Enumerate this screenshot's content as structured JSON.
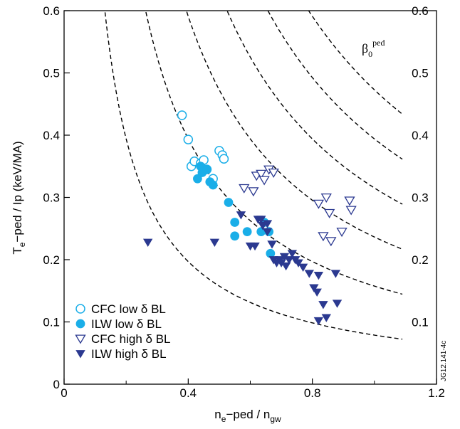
{
  "chart_data": {
    "type": "scatter",
    "title": "",
    "xlabel": "nₑ−ped / nₗw",
    "xlabel_parts": {
      "pre": "n",
      "sub1": "e",
      "mid": "−ped / n",
      "sub2": "gw"
    },
    "ylabel": "Tₑ−ped / Ip (keV/MA)",
    "ylabel_parts": {
      "pre": "T",
      "sub1": "e",
      "mid": "−ped / Ip (keV/MA)"
    },
    "xlim": [
      0,
      1.2
    ],
    "ylim": [
      0,
      0.6
    ],
    "x_ticks": [
      "0",
      "0.4",
      "0.8",
      "1.2"
    ],
    "x_tick_values": [
      0,
      0.4,
      0.8,
      1.2
    ],
    "x_minor_ticks": [
      0.2,
      0.6,
      1.0
    ],
    "y_ticks": [
      "0",
      "0.1",
      "0.2",
      "0.3",
      "0.4",
      "0.5",
      "0.6"
    ],
    "y_tick_values": [
      0,
      0.1,
      0.2,
      0.3,
      0.4,
      0.5,
      0.6
    ],
    "grid": false,
    "legend_position": "bottom-left",
    "beta_label": {
      "base": "β",
      "sub": "0",
      "sup": "ped"
    },
    "figure_code": "JG12.141-4c",
    "curves": [
      {
        "label": "0.1",
        "k": 0.0788,
        "label_value": 0.1
      },
      {
        "label": "0.2",
        "k": 0.1576,
        "label_value": 0.2
      },
      {
        "label": "0.3",
        "k": 0.2364,
        "label_value": 0.3
      },
      {
        "label": "0.4",
        "k": 0.3152,
        "label_value": 0.4
      },
      {
        "label": "0.5",
        "k": 0.394,
        "label_value": 0.5
      },
      {
        "label": "0.6",
        "k": 0.4728,
        "label_value": 0.6
      }
    ],
    "series": [
      {
        "name": "CFC low δ BL",
        "marker": "circle-open",
        "color": "#1aaee8",
        "points": [
          [
            0.38,
            0.432
          ],
          [
            0.4,
            0.393
          ],
          [
            0.41,
            0.35
          ],
          [
            0.42,
            0.358
          ],
          [
            0.44,
            0.355
          ],
          [
            0.45,
            0.36
          ],
          [
            0.46,
            0.345
          ],
          [
            0.5,
            0.375
          ],
          [
            0.51,
            0.368
          ],
          [
            0.515,
            0.362
          ],
          [
            0.48,
            0.33
          ]
        ]
      },
      {
        "name": "ILW low δ BL",
        "marker": "circle-filled",
        "color": "#1aaee8",
        "points": [
          [
            0.43,
            0.33
          ],
          [
            0.44,
            0.35
          ],
          [
            0.445,
            0.34
          ],
          [
            0.46,
            0.345
          ],
          [
            0.47,
            0.325
          ],
          [
            0.48,
            0.32
          ],
          [
            0.53,
            0.292
          ],
          [
            0.55,
            0.26
          ],
          [
            0.55,
            0.238
          ],
          [
            0.59,
            0.245
          ],
          [
            0.635,
            0.245
          ],
          [
            0.645,
            0.26
          ],
          [
            0.66,
            0.245
          ],
          [
            0.665,
            0.21
          ]
        ]
      },
      {
        "name": "CFC high δ BL",
        "marker": "triangle-open",
        "color": "#2b3990",
        "points": [
          [
            0.58,
            0.315
          ],
          [
            0.61,
            0.31
          ],
          [
            0.62,
            0.335
          ],
          [
            0.635,
            0.338
          ],
          [
            0.645,
            0.328
          ],
          [
            0.66,
            0.345
          ],
          [
            0.675,
            0.34
          ],
          [
            0.82,
            0.29
          ],
          [
            0.845,
            0.3
          ],
          [
            0.855,
            0.275
          ],
          [
            0.92,
            0.295
          ],
          [
            0.925,
            0.28
          ],
          [
            0.835,
            0.238
          ],
          [
            0.86,
            0.23
          ],
          [
            0.895,
            0.245
          ]
        ]
      },
      {
        "name": "ILW high δ BL",
        "marker": "triangle-filled",
        "color": "#2b3990",
        "points": [
          [
            0.27,
            0.228
          ],
          [
            0.485,
            0.228
          ],
          [
            0.57,
            0.272
          ],
          [
            0.6,
            0.222
          ],
          [
            0.615,
            0.222
          ],
          [
            0.625,
            0.265
          ],
          [
            0.635,
            0.265
          ],
          [
            0.64,
            0.255
          ],
          [
            0.655,
            0.258
          ],
          [
            0.655,
            0.245
          ],
          [
            0.67,
            0.225
          ],
          [
            0.675,
            0.2
          ],
          [
            0.685,
            0.195
          ],
          [
            0.695,
            0.2
          ],
          [
            0.7,
            0.195
          ],
          [
            0.71,
            0.205
          ],
          [
            0.715,
            0.19
          ],
          [
            0.725,
            0.2
          ],
          [
            0.735,
            0.21
          ],
          [
            0.745,
            0.2
          ],
          [
            0.755,
            0.195
          ],
          [
            0.77,
            0.188
          ],
          [
            0.79,
            0.178
          ],
          [
            0.805,
            0.155
          ],
          [
            0.815,
            0.148
          ],
          [
            0.82,
            0.175
          ],
          [
            0.835,
            0.128
          ],
          [
            0.875,
            0.178
          ],
          [
            0.88,
            0.13
          ],
          [
            0.82,
            0.102
          ],
          [
            0.845,
            0.107
          ]
        ]
      }
    ]
  }
}
